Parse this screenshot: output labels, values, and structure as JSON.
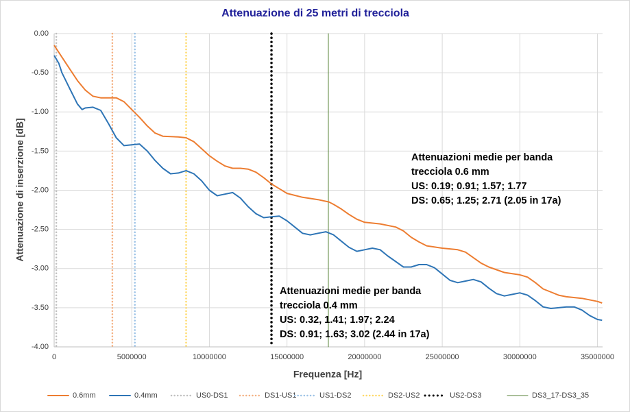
{
  "chart_data": {
    "type": "line",
    "title": "Attenuazione di 25 metri di trecciola",
    "x_label": "Frequenza [Hz]",
    "y_label": "Attenuazione di inserzione [dB]",
    "xlim": [
      0,
      35330000
    ],
    "ylim": [
      -4,
      0
    ],
    "xticks": [
      0,
      5000000,
      10000000,
      15000000,
      20000000,
      25000000,
      30000000,
      35000000
    ],
    "yticks": [
      {
        "value": 0,
        "label": "0.00"
      },
      {
        "value": -0.5,
        "label": "-0.50"
      },
      {
        "value": -1,
        "label": "-1.00"
      },
      {
        "value": -1.5,
        "label": "-1.50"
      },
      {
        "value": -2,
        "label": "-2.00"
      },
      {
        "value": -2.5,
        "label": "-2.50"
      },
      {
        "value": -3,
        "label": "-3.00"
      },
      {
        "value": -3.5,
        "label": "-3.50"
      },
      {
        "value": -4,
        "label": "-4.00"
      }
    ],
    "grid": true,
    "legend": "bottom",
    "series": [
      {
        "name": "0.6mm",
        "color": "#ed7d31",
        "x": [
          0,
          500000,
          1000000,
          1500000,
          2000000,
          2500000,
          3000000,
          4000000,
          4500000,
          5000000,
          5500000,
          6000000,
          6500000,
          7000000,
          8000000,
          8500000,
          9000000,
          9500000,
          10000000,
          10500000,
          11000000,
          11500000,
          12000000,
          12500000,
          13000000,
          13500000,
          14000000,
          14500000,
          15000000,
          16000000,
          17000000,
          17700000,
          18000000,
          18500000,
          19000000,
          19500000,
          20000000,
          21000000,
          22000000,
          22500000,
          23000000,
          23500000,
          24000000,
          25000000,
          26000000,
          26500000,
          27000000,
          27500000,
          28000000,
          29000000,
          30000000,
          30500000,
          31000000,
          31500000,
          32000000,
          32500000,
          33000000,
          34000000,
          35000000,
          35300000
        ],
        "values": [
          -0.15,
          -0.3,
          -0.45,
          -0.6,
          -0.72,
          -0.8,
          -0.82,
          -0.82,
          -0.87,
          -0.97,
          -1.07,
          -1.18,
          -1.27,
          -1.31,
          -1.32,
          -1.33,
          -1.38,
          -1.47,
          -1.56,
          -1.63,
          -1.69,
          -1.72,
          -1.72,
          -1.73,
          -1.77,
          -1.84,
          -1.92,
          -1.98,
          -2.04,
          -2.09,
          -2.12,
          -2.15,
          -2.18,
          -2.24,
          -2.31,
          -2.37,
          -2.41,
          -2.43,
          -2.47,
          -2.52,
          -2.6,
          -2.66,
          -2.71,
          -2.74,
          -2.76,
          -2.79,
          -2.86,
          -2.93,
          -2.98,
          -3.05,
          -3.08,
          -3.11,
          -3.18,
          -3.26,
          -3.3,
          -3.34,
          -3.36,
          -3.38,
          -3.42,
          -3.44
        ]
      },
      {
        "name": "0.4mm",
        "color": "#2e75b6",
        "x": [
          0,
          300000,
          500000,
          1000000,
          1500000,
          1800000,
          2000000,
          2500000,
          3000000,
          3500000,
          4000000,
          4500000,
          5000000,
          5500000,
          6000000,
          6500000,
          7000000,
          7500000,
          8000000,
          8500000,
          9000000,
          9500000,
          10000000,
          10500000,
          11000000,
          11500000,
          12000000,
          12500000,
          13000000,
          13500000,
          14000000,
          14500000,
          15000000,
          15500000,
          16000000,
          16500000,
          17000000,
          17500000,
          18000000,
          18500000,
          19000000,
          19500000,
          20000000,
          20500000,
          21000000,
          21500000,
          22000000,
          22500000,
          23000000,
          23500000,
          24000000,
          24500000,
          25000000,
          25500000,
          26000000,
          26500000,
          27000000,
          27500000,
          28000000,
          28500000,
          29000000,
          29500000,
          30000000,
          30500000,
          31000000,
          31500000,
          32000000,
          33000000,
          33500000,
          34000000,
          34500000,
          35000000,
          35300000
        ],
        "values": [
          -0.28,
          -0.38,
          -0.5,
          -0.7,
          -0.9,
          -0.97,
          -0.95,
          -0.94,
          -0.98,
          -1.15,
          -1.33,
          -1.43,
          -1.42,
          -1.41,
          -1.5,
          -1.62,
          -1.72,
          -1.79,
          -1.78,
          -1.75,
          -1.79,
          -1.88,
          -2.0,
          -2.07,
          -2.05,
          -2.03,
          -2.1,
          -2.21,
          -2.3,
          -2.35,
          -2.34,
          -2.33,
          -2.39,
          -2.47,
          -2.55,
          -2.57,
          -2.55,
          -2.53,
          -2.57,
          -2.65,
          -2.73,
          -2.78,
          -2.76,
          -2.74,
          -2.76,
          -2.84,
          -2.91,
          -2.98,
          -2.98,
          -2.95,
          -2.95,
          -2.99,
          -3.07,
          -3.15,
          -3.18,
          -3.16,
          -3.14,
          -3.17,
          -3.25,
          -3.32,
          -3.35,
          -3.33,
          -3.31,
          -3.34,
          -3.41,
          -3.49,
          -3.51,
          -3.49,
          -3.49,
          -3.53,
          -3.6,
          -3.65,
          -3.66
        ]
      }
    ],
    "vlines": [
      {
        "name": "US0-DS1",
        "color": "#bfbfbf",
        "x": 138000,
        "style": "dotted"
      },
      {
        "name": "DS1-US1",
        "color": "#f4b183",
        "x": 3750000,
        "style": "dotted"
      },
      {
        "name": "US1-DS2",
        "color": "#9dc3e6",
        "x": 5200000,
        "style": "dotted"
      },
      {
        "name": "DS2-US2",
        "color": "#ffd966",
        "x": 8500000,
        "style": "dotted"
      },
      {
        "name": "US2-DS3",
        "color": "#000000",
        "x": 14000000,
        "style": "dotted-bold"
      },
      {
        "name": "DS3_17-DS3_35",
        "color": "#548235",
        "x": 17664000,
        "style": "solid"
      }
    ],
    "annotations": [
      {
        "lines": [
          "Attenuazioni medie per banda",
          "trecciola 0.6 mm",
          "US: 0.19; 0.91; 1.57; 1.77",
          "DS: 0.65; 1.25; 2.71 (2.05 in 17a)"
        ]
      },
      {
        "lines": [
          "Attenuazioni medie per banda",
          "trecciola 0.4 mm",
          "US: 0.32, 1.41; 1.97; 2.24",
          "DS: 0.91; 1.63; 3.02 (2.44 in 17a)"
        ]
      }
    ]
  }
}
